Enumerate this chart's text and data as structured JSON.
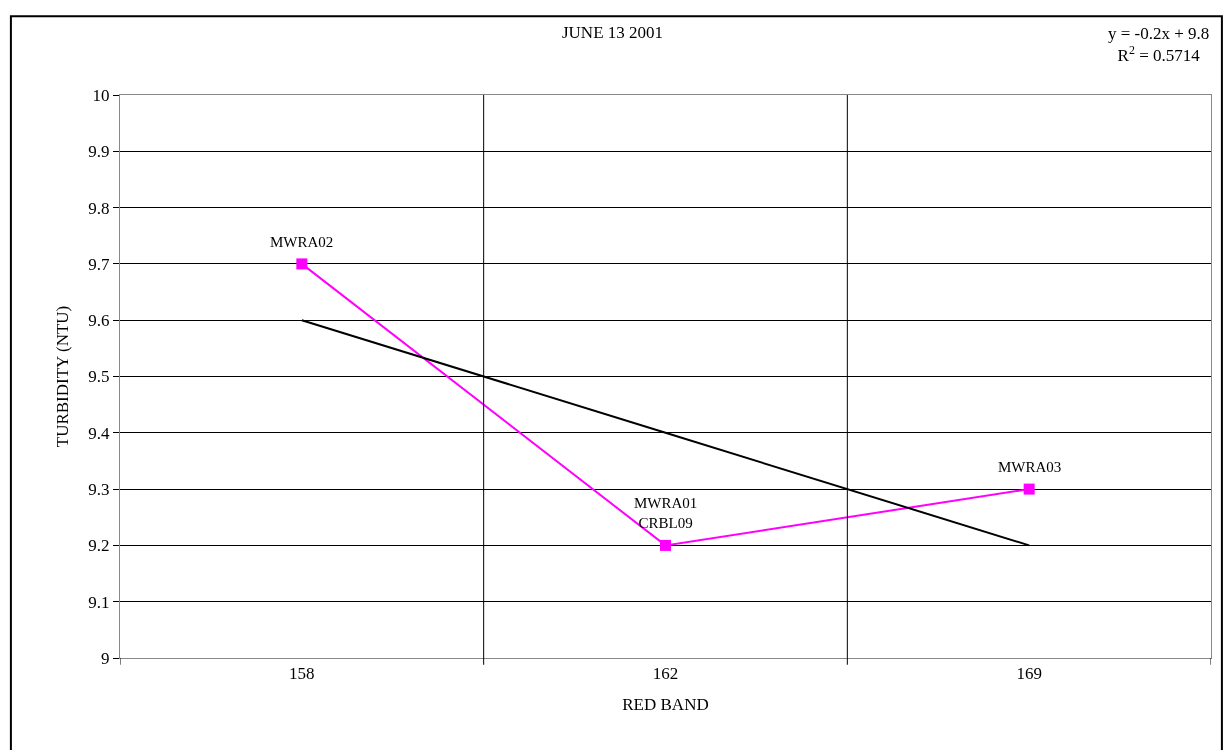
{
  "chart_data": {
    "type": "line",
    "title": "JUNE 13 2001",
    "xlabel": "RED BAND",
    "ylabel": "TURBIDITY (NTU)",
    "categories": [
      "158",
      "162",
      "169"
    ],
    "series": [
      {
        "color": "#ff00ff",
        "values": [
          9.7,
          9.2,
          9.3
        ],
        "marker": "square"
      },
      {
        "color": "#000000",
        "values": [
          9.6,
          9.4,
          9.2
        ],
        "marker": "none"
      }
    ],
    "ylim": [
      9,
      10
    ],
    "yticks": [
      9,
      9.1,
      9.2,
      9.3,
      9.4,
      9.5,
      9.6,
      9.7,
      9.8,
      9.9,
      10
    ],
    "grid": true,
    "annotations": [
      {
        "text": "MWRA02",
        "x": "158",
        "y": 9.7
      },
      {
        "text": "MWRA01\nCRBL09",
        "x": "162",
        "y": 9.2
      },
      {
        "text": "MWRA03",
        "x": "169",
        "y": 9.3
      },
      "y = -0.2x + 9.8\nR$^{2}$ = 0.5714"
    ]
  }
}
